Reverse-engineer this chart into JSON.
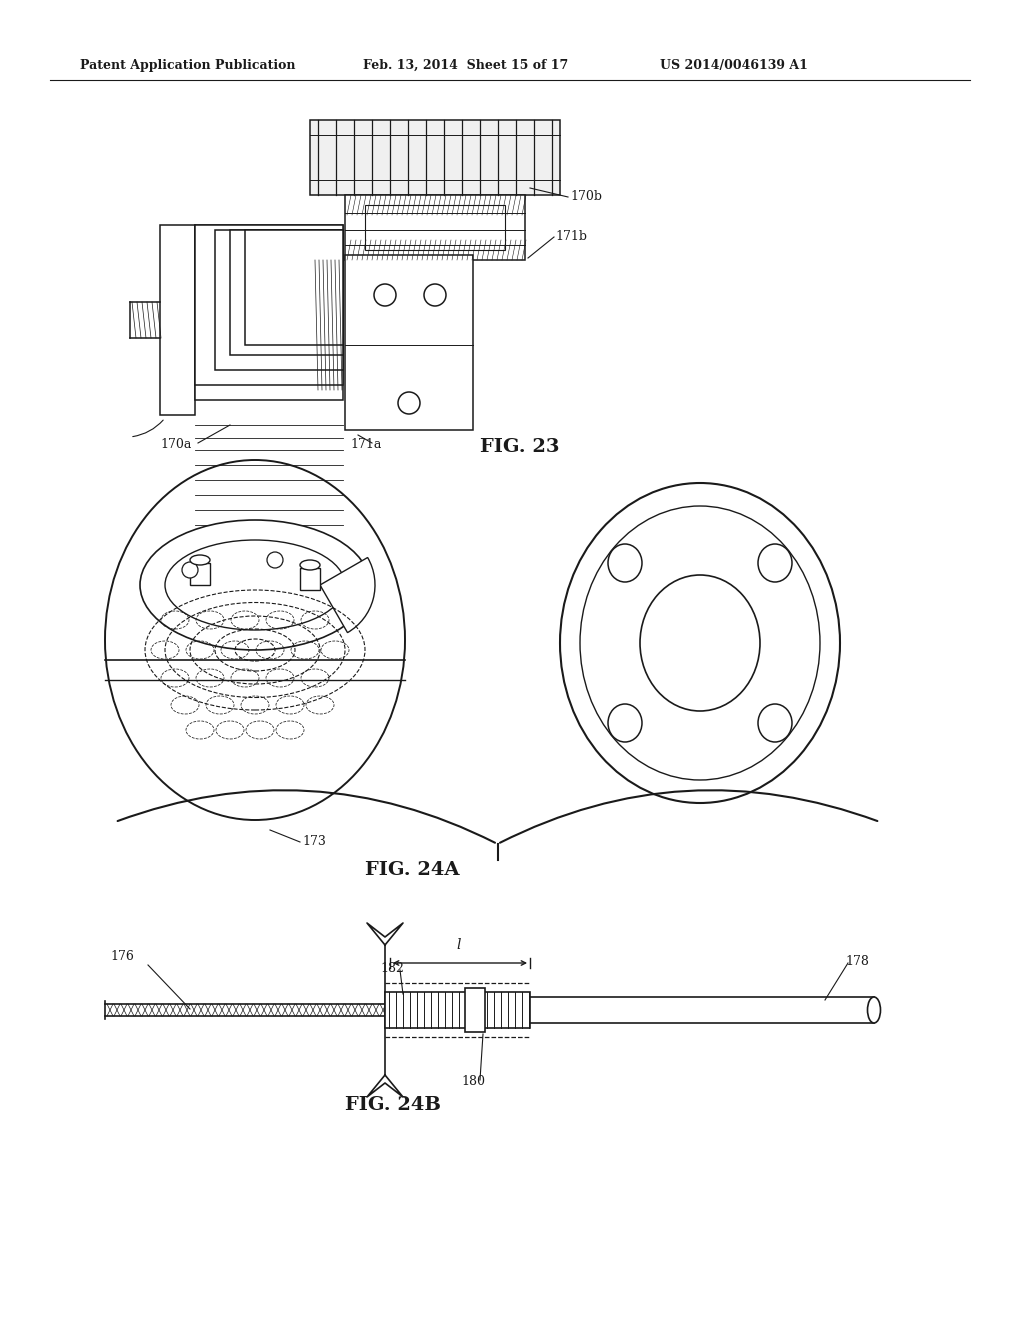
{
  "header_left": "Patent Application Publication",
  "header_mid": "Feb. 13, 2014  Sheet 15 of 17",
  "header_right": "US 2014/0046139 A1",
  "fig23_label": "FIG. 23",
  "fig24a_label": "FIG. 24A",
  "fig24b_label": "FIG. 24B",
  "label_170a": "170a",
  "label_170b": "170b",
  "label_171a": "171a",
  "label_171b": "171b",
  "label_173": "173",
  "label_176": "176",
  "label_178": "178",
  "label_180": "180",
  "label_182": "182",
  "bg_color": "#ffffff",
  "line_color": "#1a1a1a",
  "text_color": "#1a1a1a"
}
